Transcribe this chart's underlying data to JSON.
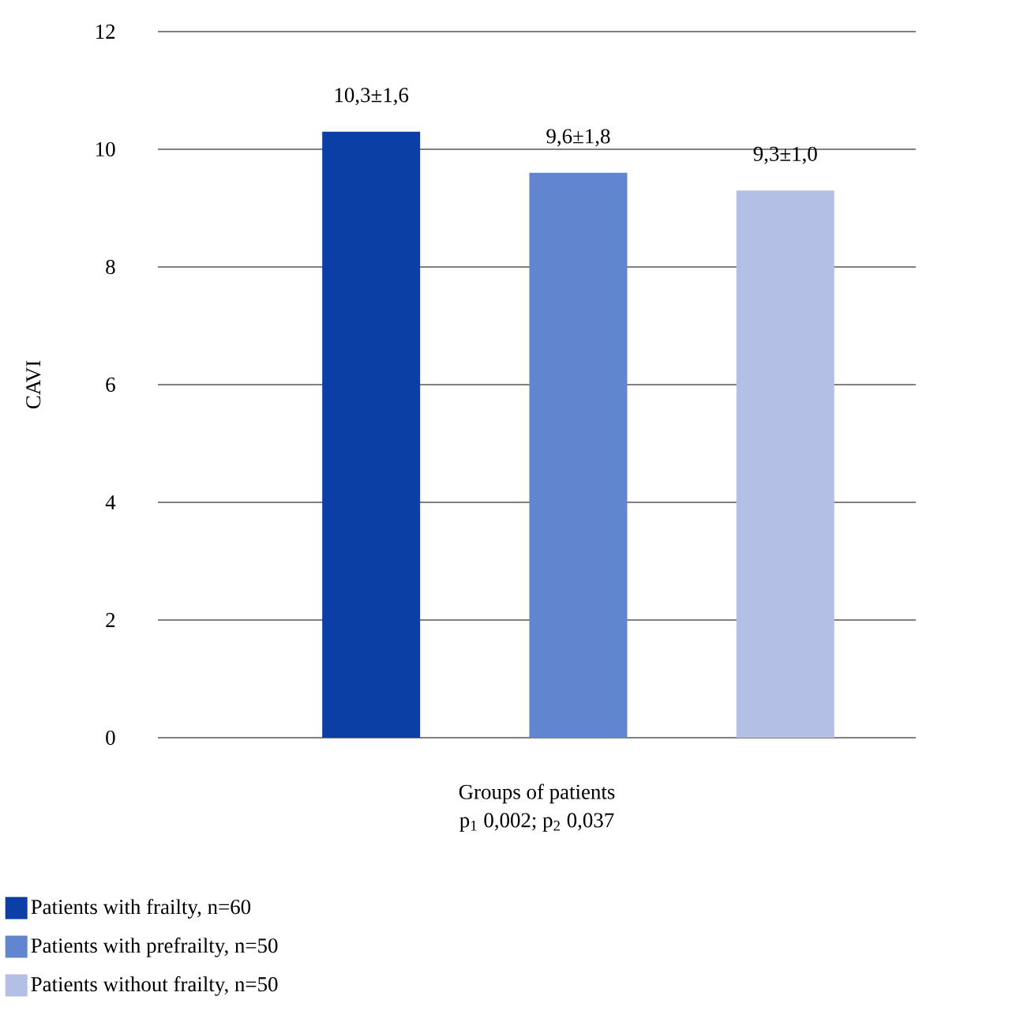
{
  "chart_data": {
    "type": "bar",
    "ylabel": "CAVI",
    "xlabel": "Groups of patients",
    "annotations": [
      "p$_{1}$ 0,002; p$_{2}$ 0,037"
    ],
    "categories": [
      null,
      null,
      null
    ],
    "series": [
      {
        "name": "Patients with frailty, n=60",
        "color": "#0b3fa5",
        "values": [
          10.3,
          null,
          null
        ],
        "value_labels": [
          "10,3±1,6",
          null,
          null
        ]
      },
      {
        "name": "Patients with prefrailty, n=50",
        "color": "#6186cf",
        "values": [
          null,
          9.6,
          null
        ],
        "value_labels": [
          null,
          "9,6±1,8",
          null
        ]
      },
      {
        "name": "Patients without frailty, n=50",
        "color": "#b3bfe5",
        "values": [
          null,
          null,
          9.3
        ],
        "value_labels": [
          null,
          null,
          "9,3±1,0"
        ]
      }
    ],
    "ylim": [
      0,
      12
    ],
    "yticks": [
      0,
      2,
      4,
      6,
      8,
      10,
      12
    ],
    "grid": "y",
    "legend": "bottom left"
  }
}
